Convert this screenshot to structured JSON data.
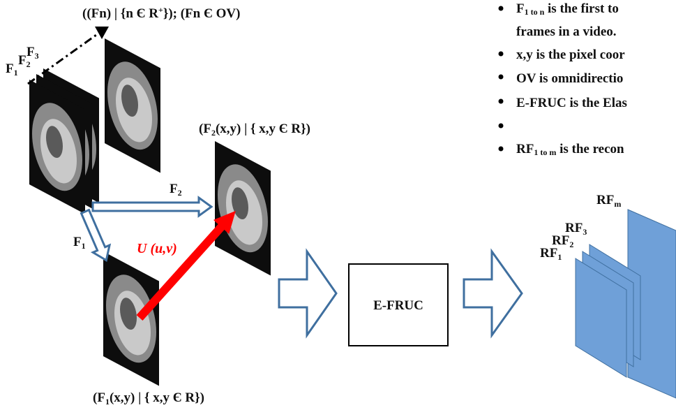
{
  "top_label": [
    "((Fn) | {n Є R",
    "+",
    "}); (Fn Є OV)"
  ],
  "stack_label": [
    "F",
    "1",
    "F",
    "2",
    "F",
    "3"
  ],
  "frame2_label": [
    "(F",
    "2",
    "(x,y) | { x,y Є R})"
  ],
  "arrow_f2": [
    "F",
    "2"
  ],
  "arrow_f1": [
    "F",
    "1"
  ],
  "motion": "U (u,v)",
  "frame1_label": [
    "(F",
    "1",
    "(x,y) | { x,y Є R})"
  ],
  "box": "E-FRUC",
  "bullets": [
    [
      "F",
      "1 to n",
      " is the first to"
    ],
    [
      "frames in a video."
    ],
    [
      "x,y is the pixel coor"
    ],
    [
      "OV is omnidirectio"
    ],
    [
      "E-FRUC is the Elas"
    ],
    [
      "RF",
      "1 to m",
      " is the recon"
    ]
  ],
  "output_labels": [
    [
      "RF",
      "1"
    ],
    [
      "RF",
      "2"
    ],
    [
      "RF",
      "3"
    ],
    [
      "RF",
      "m"
    ]
  ]
}
